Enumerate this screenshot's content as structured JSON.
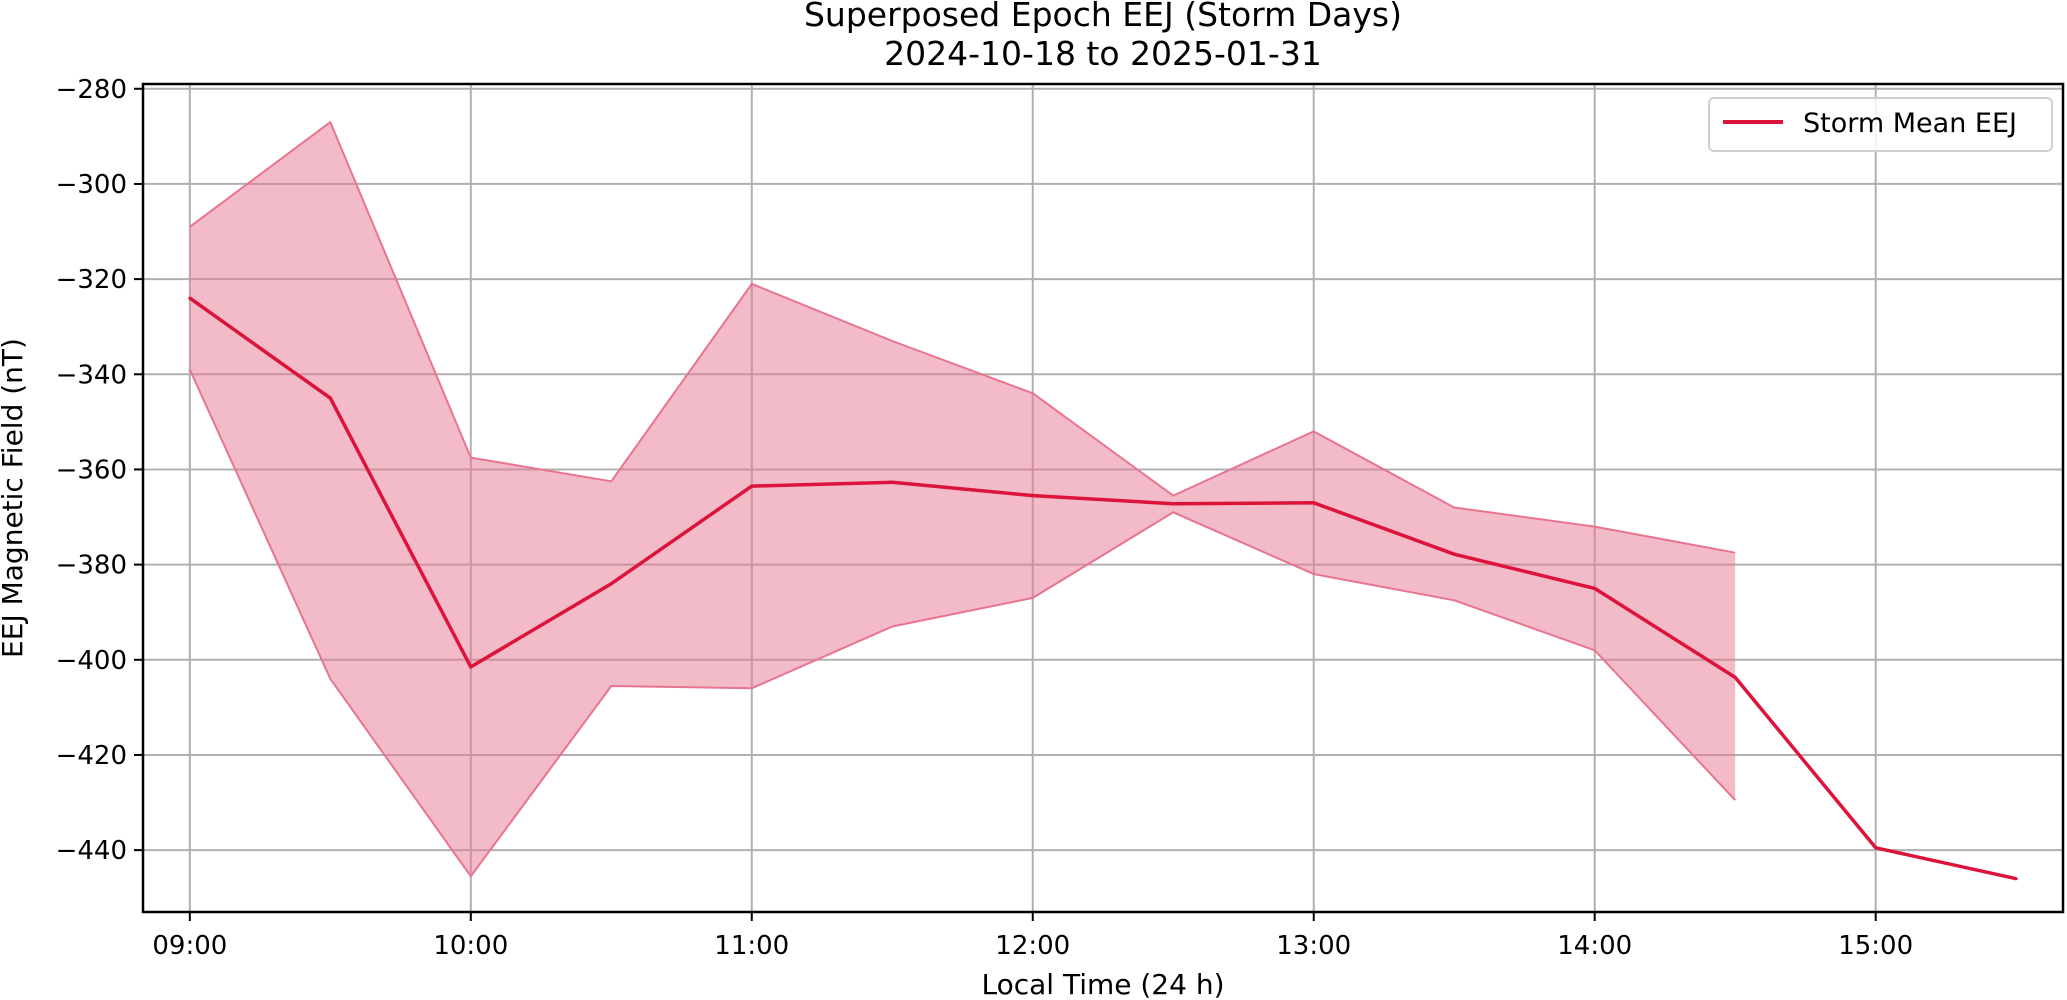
{
  "chart_data": {
    "type": "line",
    "title": "Superposed Epoch EEJ (Storm Days)",
    "subtitle": "2024-10-18 to 2025-01-31",
    "xlabel": "Local Time (24 h)",
    "ylabel": "EEJ Magnetic Field (nT)",
    "x": [
      "09:00",
      "09:30",
      "10:00",
      "10:30",
      "11:00",
      "11:30",
      "12:00",
      "12:30",
      "13:00",
      "13:30",
      "14:00",
      "14:30",
      "15:00",
      "15:30"
    ],
    "x_ticks": [
      "09:00",
      "10:00",
      "11:00",
      "12:00",
      "13:00",
      "14:00",
      "15:00"
    ],
    "xlim": [
      "08:50",
      "15:40"
    ],
    "ylim": [
      -453,
      -279
    ],
    "y_ticks": [
      -280,
      -300,
      -320,
      -340,
      -360,
      -380,
      -400,
      -420,
      -440
    ],
    "y_tick_labels": [
      "−280",
      "−300",
      "−320",
      "−340",
      "−360",
      "−380",
      "−400",
      "−420",
      "−440"
    ],
    "series": [
      {
        "name": "Storm Mean EEJ",
        "color": "#dc143c",
        "values": [
          -324,
          -345,
          -401.5,
          -384,
          -363.5,
          -362.7,
          -365.5,
          -367.2,
          -367,
          -377.8,
          -385,
          -403.7,
          -439.5,
          -446
        ]
      }
    ],
    "band": {
      "color": "#e8758f",
      "x": [
        "09:00",
        "09:30",
        "10:00",
        "10:30",
        "11:00",
        "11:30",
        "12:00",
        "12:30",
        "13:00",
        "13:30",
        "14:00",
        "14:30"
      ],
      "upper": [
        -309,
        -287,
        -357.5,
        -362.5,
        -321,
        -333,
        -344,
        -365.5,
        -352,
        -368,
        -372,
        -377.5
      ],
      "lower": [
        -339,
        -404,
        -445.5,
        -405.5,
        -406,
        -393,
        -387,
        -369,
        -382,
        -387.5,
        -398,
        -429.5
      ]
    },
    "grid": true,
    "legend": {
      "position": "top-right",
      "entries": [
        "Storm Mean EEJ"
      ]
    }
  }
}
